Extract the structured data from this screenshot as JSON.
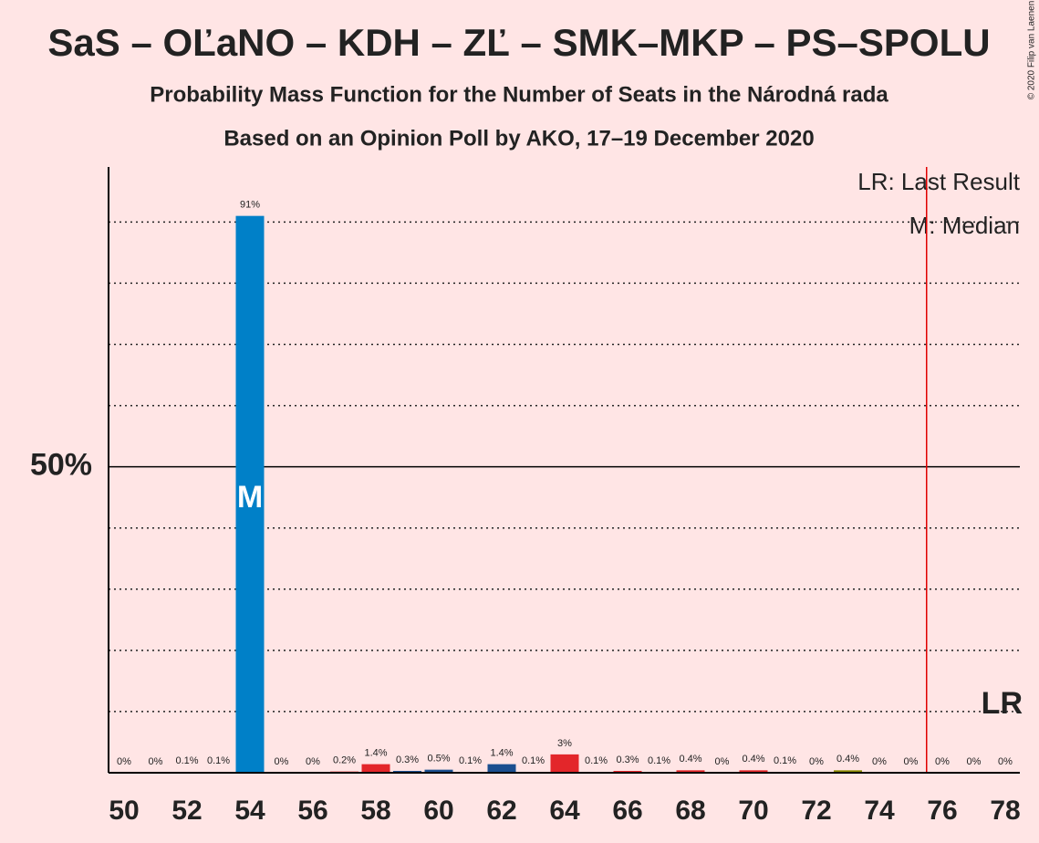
{
  "chart_data": {
    "type": "bar",
    "title": "SaS – OĽaNO – KDH – ZĽ – SMK–MKP – PS–SPOLU",
    "subtitle": "Probability Mass Function for the Number of Seats in the Národná rada",
    "subtitle2": "Based on an Opinion Poll by AKO, 17–19 December 2020",
    "copyright": "© 2020 Filip van Laenen",
    "categories": [
      "50",
      null,
      "52",
      null,
      "54",
      null,
      "56",
      null,
      "58",
      null,
      "60",
      null,
      "62",
      null,
      "64",
      null,
      "66",
      null,
      "68",
      null,
      "70",
      null,
      "72",
      null,
      "74",
      null,
      "76",
      null,
      "78"
    ],
    "values": [
      0,
      0,
      0.1,
      0.1,
      91,
      0,
      0,
      0.2,
      1.4,
      0.3,
      0.5,
      0.1,
      1.4,
      0.1,
      3,
      0.1,
      0.3,
      0.1,
      0.4,
      0,
      0.4,
      0.1,
      0,
      0.4,
      0,
      0,
      0,
      0,
      0
    ],
    "value_labels": [
      "0%",
      "0%",
      "0.1%",
      "0.1%",
      "91%",
      "0%",
      "0%",
      "0.2%",
      "1.4%",
      "0.3%",
      "0.5%",
      "0.1%",
      "1.4%",
      "0.1%",
      "3%",
      "0.1%",
      "0.3%",
      "0.1%",
      "0.4%",
      "0%",
      "0.4%",
      "0.1%",
      "0%",
      "0.4%",
      "0%",
      "0%",
      "0%",
      "0%",
      "0%"
    ],
    "colors": [
      "#0080c8",
      "#0080c8",
      "#0080c8",
      "#0080c8",
      "#0080c8",
      "#0080c8",
      "#0080c8",
      "#e3262a",
      "#e3262a",
      "#1b4f8f",
      "#1b4f8f",
      "#1b4f8f",
      "#1b4f8f",
      "#e3262a",
      "#e3262a",
      "#e3262a",
      "#e3262a",
      "#e3262a",
      "#e3262a",
      "#e3262a",
      "#e3262a",
      "#e3262a",
      "#8a8a00",
      "#8a8a00",
      "#8a8a00",
      "#8a8a00",
      "#8a8a00",
      "#8a8a00",
      "#8a8a00"
    ],
    "ylim": [
      0,
      99
    ],
    "yticks": [
      {
        "value": 50,
        "label": "50%"
      }
    ],
    "minor_yticks": [
      10,
      20,
      30,
      40,
      60,
      70,
      80,
      90
    ],
    "grid": true,
    "median_index": 4,
    "median_label": "M",
    "last_result_index": 25.5,
    "last_result_label": "LR",
    "legend": [
      "LR: Last Result",
      "M: Median"
    ]
  }
}
